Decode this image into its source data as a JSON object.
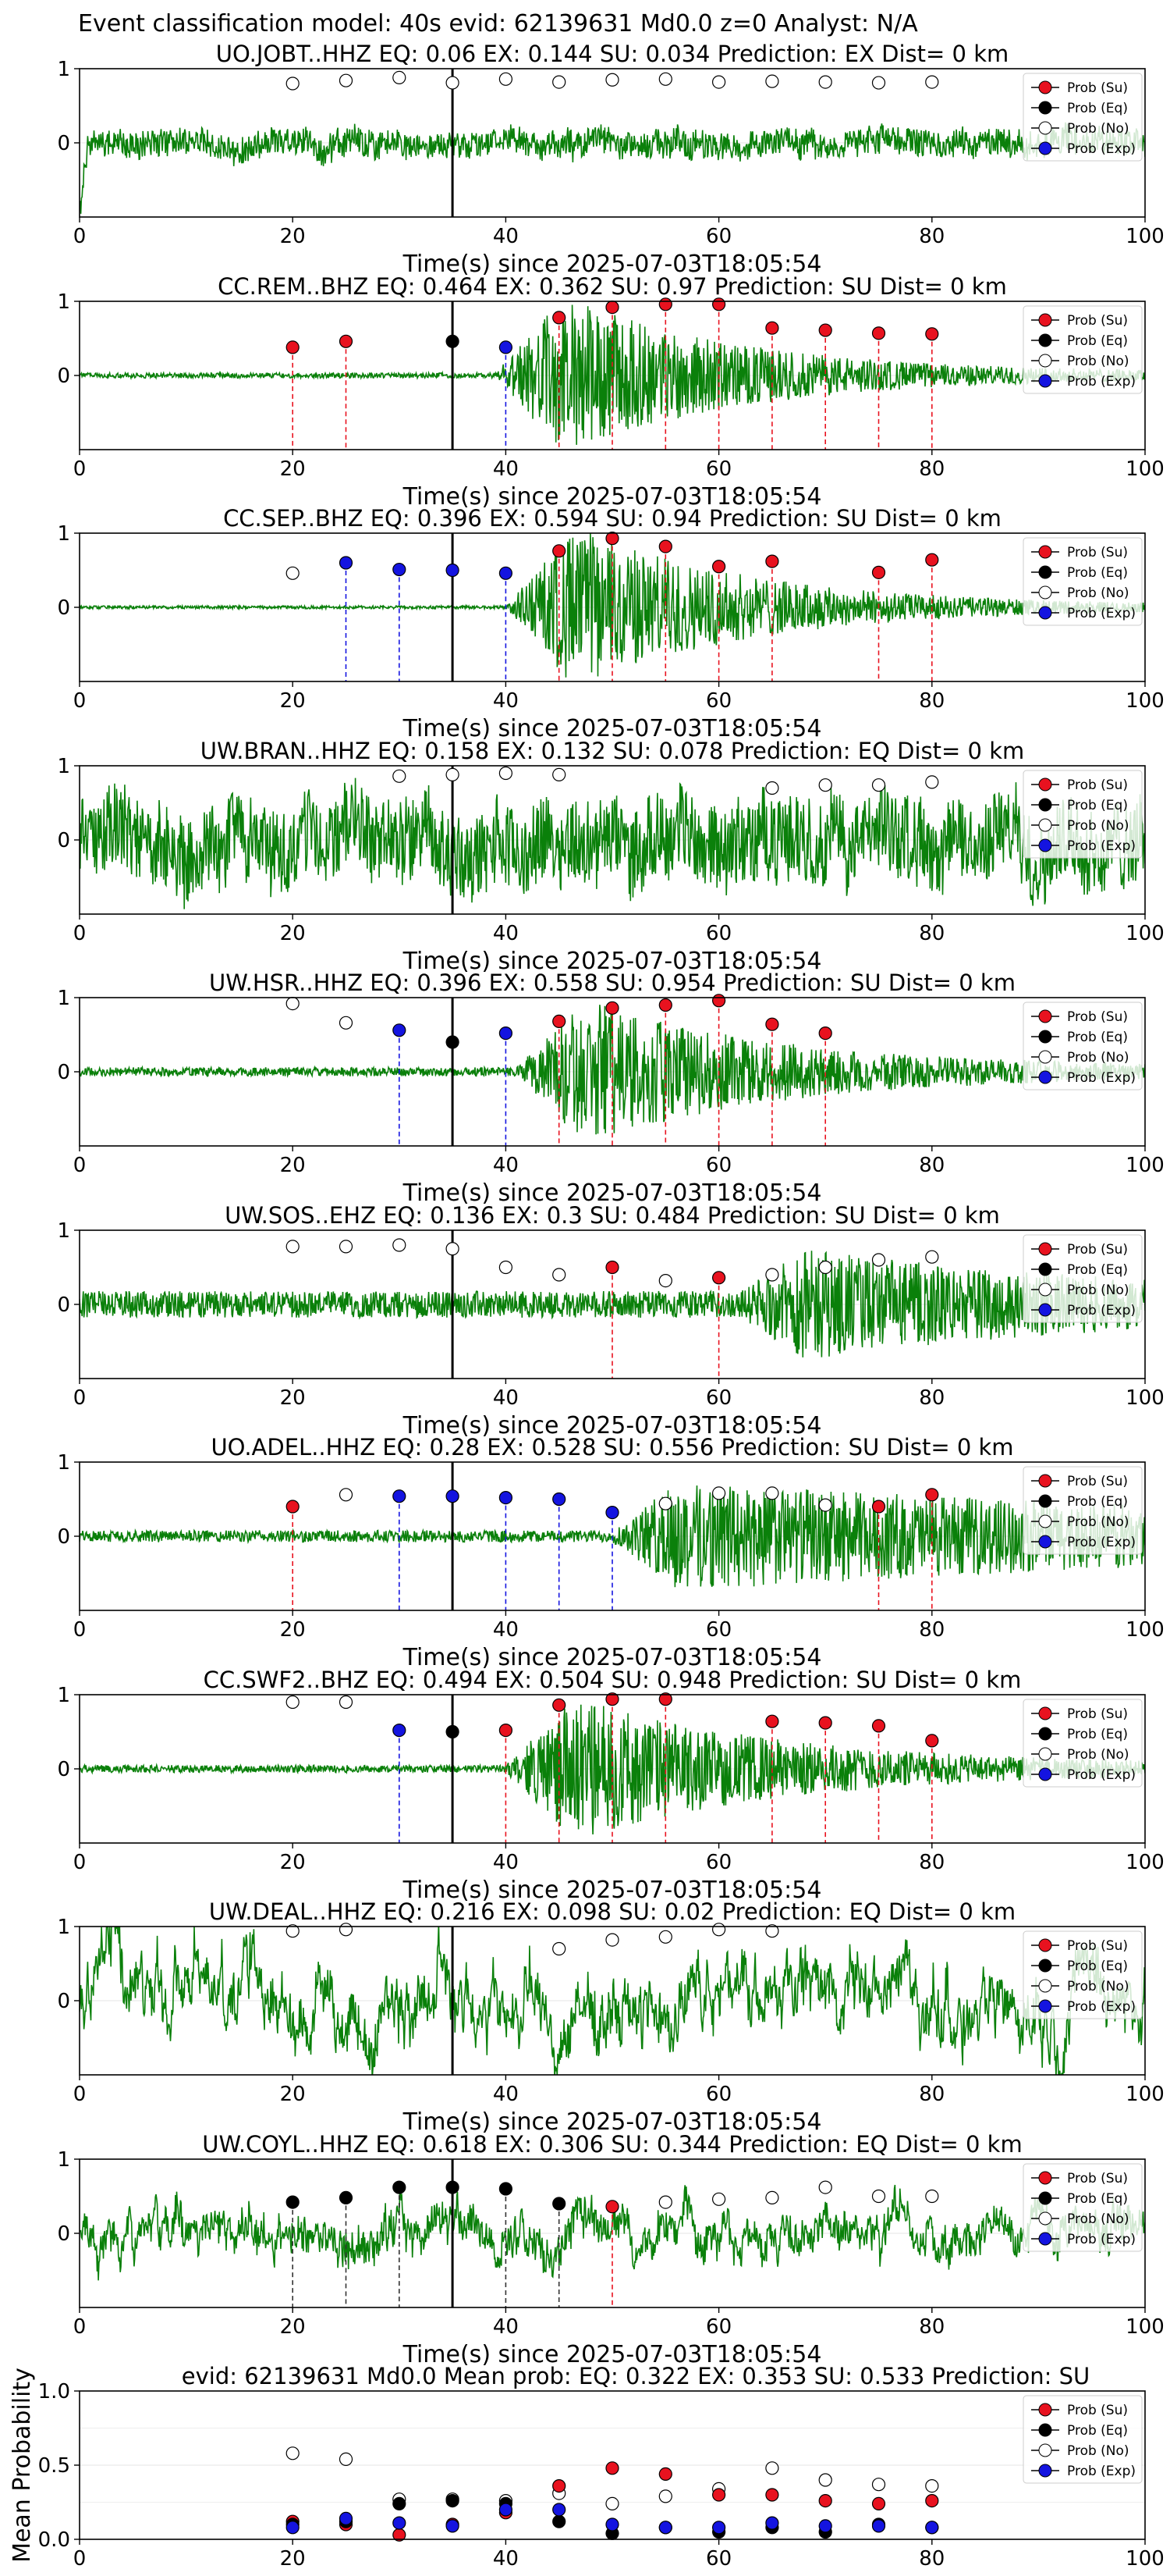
{
  "suptitle": "Event classification model: 40s evid: 62139631 Md0.0 z=0 Analyst: N/A",
  "legend_labels": [
    "Prob (Su)",
    "Prob (Eq)",
    "Prob (No)",
    "Prob (Exp)"
  ],
  "colors": {
    "su": "#e8121f",
    "eq": "#000000",
    "no": "#ffffff",
    "exp": "#1414e0",
    "trace": "#0a800a"
  },
  "chart_data": [
    {
      "type": "line",
      "station": "UO.JOBT..HHZ",
      "title": "UO.JOBT..HHZ   EQ: 0.06  EX: 0.144  SU: 0.034   Prediction: EX    Dist= 0 km",
      "xlabel": "Time(s) since 2025-07-03T18:05:54",
      "xlim": [
        0,
        100
      ],
      "ylim": [
        -1,
        1
      ],
      "x_ticks": [
        0,
        20,
        40,
        60,
        80,
        100
      ],
      "y_ticks": [
        0,
        1
      ],
      "origin_line_x": 35,
      "trace": {
        "noise": 0.18,
        "onset": 100,
        "emerg": 0,
        "lowfreq": 0.08,
        "seed": 11
      },
      "prob_points": [
        {
          "x": 20,
          "p": 0.8,
          "cls": "no"
        },
        {
          "x": 25,
          "p": 0.84,
          "cls": "no"
        },
        {
          "x": 30,
          "p": 0.88,
          "cls": "no"
        },
        {
          "x": 35,
          "p": 0.81,
          "cls": "no"
        },
        {
          "x": 40,
          "p": 0.86,
          "cls": "no"
        },
        {
          "x": 45,
          "p": 0.82,
          "cls": "no"
        },
        {
          "x": 50,
          "p": 0.85,
          "cls": "no"
        },
        {
          "x": 55,
          "p": 0.86,
          "cls": "no"
        },
        {
          "x": 60,
          "p": 0.82,
          "cls": "no"
        },
        {
          "x": 65,
          "p": 0.83,
          "cls": "no"
        },
        {
          "x": 70,
          "p": 0.82,
          "cls": "no"
        },
        {
          "x": 75,
          "p": 0.81,
          "cls": "no"
        },
        {
          "x": 80,
          "p": 0.82,
          "cls": "no"
        }
      ]
    },
    {
      "type": "line",
      "station": "CC.REM..BHZ",
      "title": "CC.REM..BHZ   EQ: 0.464  EX: 0.362  SU: 0.97   Prediction: SU    Dist= 0 km",
      "xlabel": "Time(s) since 2025-07-03T18:05:54",
      "xlim": [
        0,
        100
      ],
      "ylim": [
        -1,
        1
      ],
      "x_ticks": [
        0,
        20,
        40,
        60,
        80,
        100
      ],
      "y_ticks": [
        0,
        1
      ],
      "origin_line_x": 35,
      "trace": {
        "noise": 0.035,
        "onset": 39,
        "emerg": 0.95,
        "decay": 0.06,
        "seed": 22
      },
      "prob_points": [
        {
          "x": 20,
          "p": 0.38,
          "cls": "su"
        },
        {
          "x": 25,
          "p": 0.46,
          "cls": "su"
        },
        {
          "x": 35,
          "p": 0.46,
          "cls": "eq"
        },
        {
          "x": 40,
          "p": 0.38,
          "cls": "exp"
        },
        {
          "x": 45,
          "p": 0.78,
          "cls": "su"
        },
        {
          "x": 50,
          "p": 0.92,
          "cls": "su"
        },
        {
          "x": 55,
          "p": 0.96,
          "cls": "su"
        },
        {
          "x": 60,
          "p": 0.96,
          "cls": "su"
        },
        {
          "x": 65,
          "p": 0.64,
          "cls": "su"
        },
        {
          "x": 70,
          "p": 0.61,
          "cls": "su"
        },
        {
          "x": 75,
          "p": 0.57,
          "cls": "su"
        },
        {
          "x": 80,
          "p": 0.56,
          "cls": "su"
        }
      ]
    },
    {
      "type": "line",
      "station": "CC.SEP..BHZ",
      "title": "CC.SEP..BHZ   EQ: 0.396  EX: 0.594  SU: 0.94   Prediction: SU    Dist= 0 km",
      "xlabel": "Time(s) since 2025-07-03T18:05:54",
      "xlim": [
        0,
        100
      ],
      "ylim": [
        -1,
        1
      ],
      "x_ticks": [
        0,
        20,
        40,
        60,
        80,
        100
      ],
      "y_ticks": [
        0,
        1
      ],
      "origin_line_x": 35,
      "trace": {
        "noise": 0.02,
        "onset": 40,
        "emerg": 1.0,
        "decay": 0.06,
        "seed": 33
      },
      "prob_points": [
        {
          "x": 20,
          "p": 0.46,
          "cls": "no"
        },
        {
          "x": 25,
          "p": 0.6,
          "cls": "exp"
        },
        {
          "x": 30,
          "p": 0.51,
          "cls": "exp"
        },
        {
          "x": 35,
          "p": 0.5,
          "cls": "exp"
        },
        {
          "x": 40,
          "p": 0.46,
          "cls": "exp"
        },
        {
          "x": 45,
          "p": 0.76,
          "cls": "su"
        },
        {
          "x": 50,
          "p": 0.93,
          "cls": "su"
        },
        {
          "x": 55,
          "p": 0.82,
          "cls": "su"
        },
        {
          "x": 60,
          "p": 0.55,
          "cls": "su"
        },
        {
          "x": 65,
          "p": 0.62,
          "cls": "su"
        },
        {
          "x": 75,
          "p": 0.47,
          "cls": "su"
        },
        {
          "x": 80,
          "p": 0.64,
          "cls": "su"
        }
      ]
    },
    {
      "type": "line",
      "station": "UW.BRAN..HHZ",
      "title": "UW.BRAN..HHZ   EQ: 0.158  EX: 0.132  SU: 0.078   Prediction: EQ    Dist= 0 km",
      "xlabel": "Time(s) since 2025-07-03T18:05:54",
      "xlim": [
        0,
        100
      ],
      "ylim": [
        -1,
        1
      ],
      "x_ticks": [
        0,
        20,
        40,
        60,
        80,
        100
      ],
      "y_ticks": [
        0,
        1
      ],
      "origin_line_x": 35,
      "trace": {
        "noise": 0.55,
        "onset": 100,
        "emerg": 0,
        "lowfreq": 0.25,
        "seed": 44
      },
      "prob_points": [
        {
          "x": 30,
          "p": 0.86,
          "cls": "no"
        },
        {
          "x": 35,
          "p": 0.88,
          "cls": "no"
        },
        {
          "x": 40,
          "p": 0.9,
          "cls": "no"
        },
        {
          "x": 45,
          "p": 0.88,
          "cls": "no"
        },
        {
          "x": 65,
          "p": 0.7,
          "cls": "no"
        },
        {
          "x": 70,
          "p": 0.74,
          "cls": "no"
        },
        {
          "x": 75,
          "p": 0.74,
          "cls": "no"
        },
        {
          "x": 80,
          "p": 0.78,
          "cls": "no"
        }
      ]
    },
    {
      "type": "line",
      "station": "UW.HSR..HHZ",
      "title": "UW.HSR..HHZ   EQ: 0.396  EX: 0.558  SU: 0.954   Prediction: SU    Dist= 0 km",
      "xlabel": "Time(s) since 2025-07-03T18:05:54",
      "xlim": [
        0,
        100
      ],
      "ylim": [
        -1,
        1
      ],
      "x_ticks": [
        0,
        20,
        40,
        60,
        80,
        100
      ],
      "y_ticks": [
        0,
        1
      ],
      "origin_line_x": 35,
      "trace": {
        "noise": 0.06,
        "onset": 41,
        "emerg": 0.85,
        "decay": 0.055,
        "seed": 55
      },
      "prob_points": [
        {
          "x": 20,
          "p": 0.92,
          "cls": "no"
        },
        {
          "x": 25,
          "p": 0.66,
          "cls": "no"
        },
        {
          "x": 30,
          "p": 0.56,
          "cls": "exp"
        },
        {
          "x": 35,
          "p": 0.4,
          "cls": "eq"
        },
        {
          "x": 40,
          "p": 0.52,
          "cls": "exp"
        },
        {
          "x": 45,
          "p": 0.68,
          "cls": "su"
        },
        {
          "x": 50,
          "p": 0.86,
          "cls": "su"
        },
        {
          "x": 55,
          "p": 0.9,
          "cls": "su"
        },
        {
          "x": 60,
          "p": 0.96,
          "cls": "su"
        },
        {
          "x": 65,
          "p": 0.64,
          "cls": "su"
        },
        {
          "x": 70,
          "p": 0.52,
          "cls": "su"
        }
      ]
    },
    {
      "type": "line",
      "station": "UW.SOS..EHZ",
      "title": "UW.SOS..EHZ   EQ: 0.136  EX: 0.3  SU: 0.484   Prediction: SU    Dist= 0 km",
      "xlabel": "Time(s) since 2025-07-03T18:05:54",
      "xlim": [
        0,
        100
      ],
      "ylim": [
        -1,
        1
      ],
      "x_ticks": [
        0,
        20,
        40,
        60,
        80,
        100
      ],
      "y_ticks": [
        0,
        1
      ],
      "origin_line_x": 35,
      "trace": {
        "noise": 0.18,
        "onset": 62,
        "emerg": 0.55,
        "decay": 0.04,
        "seed": 66
      },
      "prob_points": [
        {
          "x": 20,
          "p": 0.78,
          "cls": "no"
        },
        {
          "x": 25,
          "p": 0.78,
          "cls": "no"
        },
        {
          "x": 30,
          "p": 0.8,
          "cls": "no"
        },
        {
          "x": 35,
          "p": 0.75,
          "cls": "no"
        },
        {
          "x": 40,
          "p": 0.5,
          "cls": "no"
        },
        {
          "x": 45,
          "p": 0.4,
          "cls": "no"
        },
        {
          "x": 50,
          "p": 0.5,
          "cls": "su"
        },
        {
          "x": 55,
          "p": 0.32,
          "cls": "no"
        },
        {
          "x": 60,
          "p": 0.36,
          "cls": "su"
        },
        {
          "x": 65,
          "p": 0.4,
          "cls": "no"
        },
        {
          "x": 70,
          "p": 0.5,
          "cls": "no"
        },
        {
          "x": 75,
          "p": 0.6,
          "cls": "no"
        },
        {
          "x": 80,
          "p": 0.64,
          "cls": "no"
        }
      ]
    },
    {
      "type": "line",
      "station": "UO.ADEL..HHZ",
      "title": "UO.ADEL..HHZ   EQ: 0.28  EX: 0.528  SU: 0.556   Prediction: SU    Dist= 0 km",
      "xlabel": "Time(s) since 2025-07-03T18:05:54",
      "xlim": [
        0,
        100
      ],
      "ylim": [
        -1,
        1
      ],
      "x_ticks": [
        0,
        20,
        40,
        60,
        80,
        100
      ],
      "y_ticks": [
        0,
        1
      ],
      "origin_line_x": 35,
      "trace": {
        "noise": 0.08,
        "onset": 50,
        "emerg": 0.65,
        "decay": 0.015,
        "seed": 77
      },
      "prob_points": [
        {
          "x": 20,
          "p": 0.4,
          "cls": "su"
        },
        {
          "x": 25,
          "p": 0.56,
          "cls": "no"
        },
        {
          "x": 30,
          "p": 0.54,
          "cls": "exp"
        },
        {
          "x": 35,
          "p": 0.54,
          "cls": "exp"
        },
        {
          "x": 40,
          "p": 0.52,
          "cls": "exp"
        },
        {
          "x": 45,
          "p": 0.5,
          "cls": "exp"
        },
        {
          "x": 50,
          "p": 0.32,
          "cls": "exp"
        },
        {
          "x": 55,
          "p": 0.44,
          "cls": "no"
        },
        {
          "x": 60,
          "p": 0.58,
          "cls": "no"
        },
        {
          "x": 65,
          "p": 0.58,
          "cls": "no"
        },
        {
          "x": 70,
          "p": 0.42,
          "cls": "no"
        },
        {
          "x": 75,
          "p": 0.4,
          "cls": "su"
        },
        {
          "x": 80,
          "p": 0.56,
          "cls": "su"
        }
      ]
    },
    {
      "type": "line",
      "station": "CC.SWF2..BHZ",
      "title": "CC.SWF2..BHZ   EQ: 0.494  EX: 0.504  SU: 0.948   Prediction: SU    Dist= 0 km",
      "xlabel": "Time(s) since 2025-07-03T18:05:54",
      "xlim": [
        0,
        100
      ],
      "ylim": [
        -1,
        1
      ],
      "x_ticks": [
        0,
        20,
        40,
        60,
        80,
        100
      ],
      "y_ticks": [
        0,
        1
      ],
      "origin_line_x": 35,
      "trace": {
        "noise": 0.05,
        "onset": 40,
        "emerg": 0.85,
        "decay": 0.05,
        "seed": 88
      },
      "prob_points": [
        {
          "x": 20,
          "p": 0.9,
          "cls": "no"
        },
        {
          "x": 25,
          "p": 0.9,
          "cls": "no"
        },
        {
          "x": 30,
          "p": 0.52,
          "cls": "exp"
        },
        {
          "x": 35,
          "p": 0.5,
          "cls": "eq"
        },
        {
          "x": 40,
          "p": 0.52,
          "cls": "su"
        },
        {
          "x": 45,
          "p": 0.86,
          "cls": "su"
        },
        {
          "x": 50,
          "p": 0.94,
          "cls": "su"
        },
        {
          "x": 55,
          "p": 0.94,
          "cls": "su"
        },
        {
          "x": 65,
          "p": 0.64,
          "cls": "su"
        },
        {
          "x": 70,
          "p": 0.62,
          "cls": "su"
        },
        {
          "x": 75,
          "p": 0.58,
          "cls": "su"
        },
        {
          "x": 80,
          "p": 0.38,
          "cls": "su"
        }
      ]
    },
    {
      "type": "line",
      "station": "UW.DEAL..HHZ",
      "title": "UW.DEAL..HHZ   EQ: 0.216  EX: 0.098  SU: 0.02   Prediction: EQ    Dist= 0 km",
      "xlabel": "Time(s) since 2025-07-03T18:05:54",
      "xlim": [
        0,
        100
      ],
      "ylim": [
        -1,
        1
      ],
      "x_ticks": [
        0,
        20,
        40,
        60,
        80,
        100
      ],
      "y_ticks": [
        0,
        1
      ],
      "origin_line_x": 35,
      "trace": {
        "noise": 0.25,
        "onset": 100,
        "emerg": 0,
        "lowfreq": 0.55,
        "seed": 99
      },
      "prob_points": [
        {
          "x": 20,
          "p": 0.94,
          "cls": "no"
        },
        {
          "x": 25,
          "p": 0.96,
          "cls": "no"
        },
        {
          "x": 45,
          "p": 0.7,
          "cls": "no"
        },
        {
          "x": 50,
          "p": 0.82,
          "cls": "no"
        },
        {
          "x": 55,
          "p": 0.86,
          "cls": "no"
        },
        {
          "x": 60,
          "p": 0.96,
          "cls": "no"
        },
        {
          "x": 65,
          "p": 0.94,
          "cls": "no"
        }
      ]
    },
    {
      "type": "line",
      "station": "UW.COYL..HHZ",
      "title": "UW.COYL..HHZ   EQ: 0.618  EX: 0.306  SU: 0.344   Prediction: EQ    Dist= 0 km",
      "xlabel": "Time(s) since 2025-07-03T18:05:54",
      "xlim": [
        0,
        100
      ],
      "ylim": [
        -1,
        1
      ],
      "x_ticks": [
        0,
        20,
        40,
        60,
        80,
        100
      ],
      "y_ticks": [
        0,
        1
      ],
      "origin_line_x": 35,
      "trace": {
        "noise": 0.2,
        "onset": 100,
        "emerg": 0,
        "lowfreq": 0.3,
        "seed": 111
      },
      "prob_points": [
        {
          "x": 20,
          "p": 0.42,
          "cls": "eq"
        },
        {
          "x": 25,
          "p": 0.48,
          "cls": "eq"
        },
        {
          "x": 30,
          "p": 0.62,
          "cls": "eq"
        },
        {
          "x": 35,
          "p": 0.62,
          "cls": "eq"
        },
        {
          "x": 40,
          "p": 0.6,
          "cls": "eq"
        },
        {
          "x": 45,
          "p": 0.4,
          "cls": "eq"
        },
        {
          "x": 50,
          "p": 0.36,
          "cls": "su"
        },
        {
          "x": 55,
          "p": 0.42,
          "cls": "no"
        },
        {
          "x": 60,
          "p": 0.46,
          "cls": "no"
        },
        {
          "x": 65,
          "p": 0.48,
          "cls": "no"
        },
        {
          "x": 70,
          "p": 0.62,
          "cls": "no"
        },
        {
          "x": 75,
          "p": 0.5,
          "cls": "no"
        },
        {
          "x": 80,
          "p": 0.5,
          "cls": "no"
        }
      ]
    },
    {
      "type": "scatter",
      "title": "evid: 62139631  Md0.0   Mean prob:   EQ: 0.322  EX: 0.353  SU: 0.533   Prediction: SU",
      "ylabel": "Mean Probability",
      "xlim": [
        0,
        100
      ],
      "ylim": [
        0,
        1
      ],
      "x_ticks": [
        0,
        20,
        40,
        60,
        80,
        100
      ],
      "y_ticks": [
        0.0,
        0.5,
        1.0
      ],
      "y_tick_labels": [
        "0.0",
        "0.5",
        "1.0"
      ],
      "x": [
        20,
        25,
        30,
        35,
        40,
        45,
        50,
        55,
        60,
        65,
        70,
        75,
        80
      ],
      "series": [
        {
          "name": "Prob (Su)",
          "cls": "su",
          "values": [
            0.12,
            0.1,
            0.03,
            0.1,
            0.18,
            0.36,
            0.48,
            0.44,
            0.3,
            0.3,
            0.26,
            0.24,
            0.26
          ]
        },
        {
          "name": "Prob (Eq)",
          "cls": "eq",
          "values": [
            0.1,
            0.12,
            0.24,
            0.26,
            0.24,
            0.12,
            0.04,
            0.08,
            0.05,
            0.08,
            0.05,
            0.1,
            0.08
          ]
        },
        {
          "name": "Prob (No)",
          "cls": "no",
          "values": [
            0.58,
            0.54,
            0.27,
            0.27,
            0.26,
            0.31,
            0.24,
            0.29,
            0.34,
            0.48,
            0.4,
            0.37,
            0.36
          ]
        },
        {
          "name": "Prob (Exp)",
          "cls": "exp",
          "values": [
            0.08,
            0.14,
            0.11,
            0.09,
            0.2,
            0.2,
            0.1,
            0.08,
            0.08,
            0.11,
            0.09,
            0.09,
            0.08
          ]
        }
      ]
    }
  ]
}
